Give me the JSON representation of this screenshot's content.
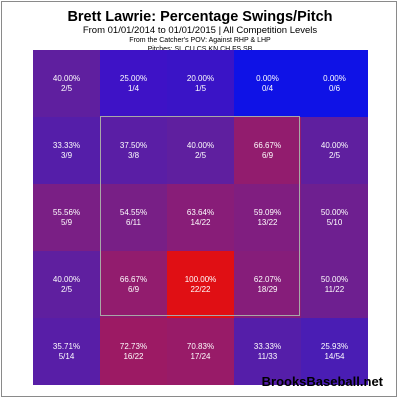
{
  "header": {
    "title": "Brett Lawrie: Percentage Swings/Pitch",
    "subtitle": "From 01/01/2014 to 01/01/2015 | All Competition Levels",
    "pov": "From the Catcher's POV:  Against RHP & LHP",
    "pitches": "Pitches:  SL  CU  CS  KN  CH  FS  SB"
  },
  "footer": {
    "brand": "BrooksBaseball.net"
  },
  "chart_data": {
    "type": "heatmap",
    "title": "Brett Lawrie: Percentage Swings/Pitch",
    "rows": 5,
    "cols": 5,
    "strike_zone": {
      "rows": [
        1,
        3
      ],
      "cols": [
        1,
        3
      ]
    },
    "cells": [
      [
        {
          "pct": "40.00%",
          "frac": "2/5",
          "value": 40.0,
          "color": "#5f1f9f"
        },
        {
          "pct": "25.00%",
          "frac": "1/4",
          "value": 25.0,
          "color": "#3e12c6"
        },
        {
          "pct": "20.00%",
          "frac": "1/5",
          "value": 20.0,
          "color": "#3a14c6"
        },
        {
          "pct": "0.00%",
          "frac": "0/4",
          "value": 0.0,
          "color": "#0f12e6"
        },
        {
          "pct": "0.00%",
          "frac": "0/6",
          "value": 0.0,
          "color": "#0f12e6"
        }
      ],
      [
        {
          "pct": "33.33%",
          "frac": "3/9",
          "value": 33.33,
          "color": "#551ea9"
        },
        {
          "pct": "37.50%",
          "frac": "3/8",
          "value": 37.5,
          "color": "#5a1ea5"
        },
        {
          "pct": "40.00%",
          "frac": "2/5",
          "value": 40.0,
          "color": "#5f1f9f"
        },
        {
          "pct": "66.67%",
          "frac": "6/9",
          "value": 66.67,
          "color": "#921c6e"
        },
        {
          "pct": "40.00%",
          "frac": "2/5",
          "value": 40.0,
          "color": "#5f1f9f"
        }
      ],
      [
        {
          "pct": "55.56%",
          "frac": "5/9",
          "value": 55.56,
          "color": "#7a1f85"
        },
        {
          "pct": "54.55%",
          "frac": "6/11",
          "value": 54.55,
          "color": "#781f86"
        },
        {
          "pct": "63.64%",
          "frac": "14/22",
          "value": 63.64,
          "color": "#881d78"
        },
        {
          "pct": "59.09%",
          "frac": "13/22",
          "value": 59.09,
          "color": "#801e80"
        },
        {
          "pct": "50.00%",
          "frac": "5/10",
          "value": 50.0,
          "color": "#6e1f90"
        }
      ],
      [
        {
          "pct": "40.00%",
          "frac": "2/5",
          "value": 40.0,
          "color": "#5f1f9f"
        },
        {
          "pct": "66.67%",
          "frac": "6/9",
          "value": 66.67,
          "color": "#921c6e"
        },
        {
          "pct": "100.00%",
          "frac": "22/22",
          "value": 100.0,
          "color": "#e00f14"
        },
        {
          "pct": "62.07%",
          "frac": "18/29",
          "value": 62.07,
          "color": "#861d7a"
        },
        {
          "pct": "50.00%",
          "frac": "11/22",
          "value": 50.0,
          "color": "#6e1f90"
        }
      ],
      [
        {
          "pct": "35.71%",
          "frac": "5/14",
          "value": 35.71,
          "color": "#581ea7"
        },
        {
          "pct": "72.73%",
          "frac": "16/22",
          "value": 72.73,
          "color": "#9c1a64"
        },
        {
          "pct": "70.83%",
          "frac": "17/24",
          "value": 70.83,
          "color": "#981b68"
        },
        {
          "pct": "33.33%",
          "frac": "11/33",
          "value": 33.33,
          "color": "#551ea9"
        },
        {
          "pct": "25.93%",
          "frac": "14/54",
          "value": 25.93,
          "color": "#4a1db4"
        }
      ]
    ]
  }
}
